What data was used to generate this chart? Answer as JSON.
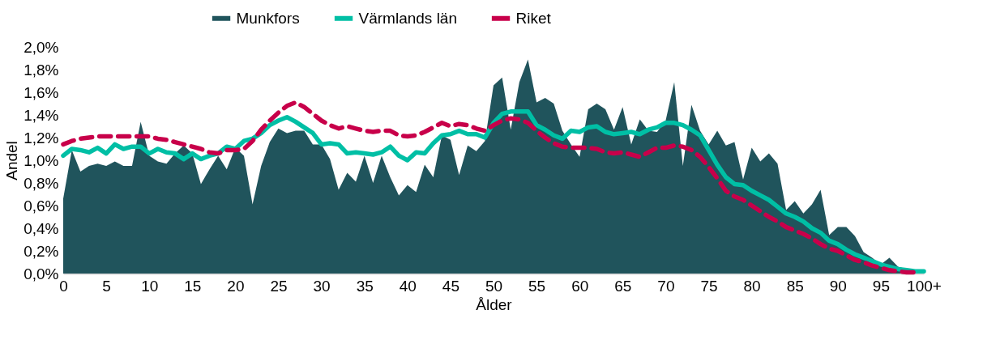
{
  "chart_data": {
    "type": "line",
    "xlabel": "Ålder",
    "ylabel": "Andel",
    "categories": [
      "0",
      null,
      null,
      null,
      null,
      "5",
      null,
      null,
      null,
      null,
      "10",
      null,
      null,
      null,
      null,
      "15",
      null,
      null,
      null,
      null,
      "20",
      null,
      null,
      null,
      null,
      "25",
      null,
      null,
      null,
      null,
      "30",
      null,
      null,
      null,
      null,
      "35",
      null,
      null,
      null,
      null,
      "40",
      null,
      null,
      null,
      null,
      "45",
      null,
      null,
      null,
      null,
      "50",
      null,
      null,
      null,
      null,
      "55",
      null,
      null,
      null,
      null,
      "60",
      null,
      null,
      null,
      null,
      "65",
      null,
      null,
      null,
      null,
      "70",
      null,
      null,
      null,
      null,
      "75",
      null,
      null,
      null,
      null,
      "80",
      null,
      null,
      null,
      null,
      "85",
      null,
      null,
      null,
      null,
      "90",
      null,
      null,
      null,
      null,
      "95",
      null,
      null,
      null,
      null,
      "100+"
    ],
    "series": [
      {
        "name": "Munkfors",
        "type": "area",
        "color": "#20545c",
        "values": [
          0.66,
          1.09,
          0.9,
          0.95,
          0.97,
          0.95,
          0.99,
          0.95,
          0.95,
          1.34,
          1.04,
          0.99,
          0.97,
          1.06,
          1.13,
          1.06,
          0.79,
          0.92,
          1.04,
          0.92,
          1.11,
          1.04,
          0.61,
          0.95,
          1.16,
          1.28,
          1.24,
          1.26,
          1.26,
          1.14,
          1.14,
          1.01,
          0.74,
          0.89,
          0.81,
          1.04,
          0.8,
          1.04,
          0.85,
          0.69,
          0.78,
          0.72,
          0.96,
          0.85,
          1.22,
          1.18,
          0.87,
          1.13,
          1.08,
          1.17,
          1.66,
          1.73,
          1.27,
          1.69,
          1.89,
          1.51,
          1.55,
          1.5,
          1.26,
          1.14,
          1.03,
          1.45,
          1.5,
          1.45,
          1.27,
          1.47,
          1.14,
          1.36,
          1.26,
          1.25,
          1.35,
          1.69,
          0.95,
          1.49,
          1.26,
          1.14,
          1.26,
          1.13,
          1.16,
          0.83,
          1.11,
          0.99,
          1.06,
          0.97,
          0.56,
          0.64,
          0.53,
          0.61,
          0.74,
          0.34,
          0.41,
          0.41,
          0.33,
          0.19,
          0.14,
          0.08,
          0.14,
          0.06,
          0.04,
          0.01,
          0.0
        ]
      },
      {
        "name": "Värmlands län",
        "line_style": "solid",
        "color": "#00bfa5",
        "values": [
          1.04,
          1.1,
          1.09,
          1.07,
          1.11,
          1.06,
          1.14,
          1.1,
          1.12,
          1.12,
          1.06,
          1.1,
          1.07,
          1.06,
          1.01,
          1.06,
          1.01,
          1.04,
          1.06,
          1.12,
          1.1,
          1.17,
          1.19,
          1.24,
          1.31,
          1.35,
          1.38,
          1.34,
          1.29,
          1.24,
          1.14,
          1.15,
          1.14,
          1.06,
          1.07,
          1.06,
          1.05,
          1.07,
          1.12,
          1.04,
          1.0,
          1.07,
          1.06,
          1.15,
          1.22,
          1.23,
          1.26,
          1.23,
          1.23,
          1.2,
          1.33,
          1.41,
          1.43,
          1.43,
          1.43,
          1.31,
          1.27,
          1.22,
          1.19,
          1.26,
          1.25,
          1.29,
          1.3,
          1.25,
          1.23,
          1.24,
          1.25,
          1.23,
          1.27,
          1.29,
          1.33,
          1.33,
          1.31,
          1.27,
          1.22,
          1.09,
          0.96,
          0.85,
          0.79,
          0.78,
          0.73,
          0.69,
          0.65,
          0.59,
          0.53,
          0.5,
          0.46,
          0.4,
          0.36,
          0.29,
          0.26,
          0.21,
          0.17,
          0.14,
          0.11,
          0.08,
          0.06,
          0.04,
          0.03,
          0.02,
          0.02
        ]
      },
      {
        "name": "Riket",
        "line_style": "dashed",
        "color": "#c8004a",
        "values": [
          1.14,
          1.17,
          1.19,
          1.2,
          1.21,
          1.21,
          1.21,
          1.21,
          1.21,
          1.21,
          1.21,
          1.19,
          1.18,
          1.16,
          1.14,
          1.12,
          1.1,
          1.07,
          1.06,
          1.09,
          1.09,
          1.1,
          1.17,
          1.27,
          1.35,
          1.42,
          1.48,
          1.51,
          1.47,
          1.41,
          1.35,
          1.31,
          1.28,
          1.3,
          1.28,
          1.26,
          1.25,
          1.26,
          1.26,
          1.22,
          1.21,
          1.22,
          1.25,
          1.29,
          1.33,
          1.3,
          1.32,
          1.31,
          1.28,
          1.26,
          1.31,
          1.35,
          1.37,
          1.36,
          1.33,
          1.26,
          1.2,
          1.15,
          1.12,
          1.11,
          1.11,
          1.11,
          1.1,
          1.07,
          1.06,
          1.07,
          1.05,
          1.03,
          1.07,
          1.11,
          1.11,
          1.13,
          1.12,
          1.09,
          1.03,
          0.94,
          0.84,
          0.73,
          0.68,
          0.65,
          0.6,
          0.55,
          0.5,
          0.46,
          0.41,
          0.38,
          0.35,
          0.31,
          0.26,
          0.22,
          0.2,
          0.16,
          0.12,
          0.1,
          0.07,
          0.05,
          0.03,
          0.02,
          0.01,
          0.01,
          null
        ]
      }
    ],
    "ylim": [
      0,
      2.0
    ],
    "yticks": [
      {
        "value": 0,
        "label": "0,0%"
      },
      {
        "value": 0.2,
        "label": "0,2%"
      },
      {
        "value": 0.4,
        "label": "0,4%"
      },
      {
        "value": 0.6,
        "label": "0,6%"
      },
      {
        "value": 0.8,
        "label": "0,8%"
      },
      {
        "value": 1.0,
        "label": "1,0%"
      },
      {
        "value": 1.2,
        "label": "1,2%"
      },
      {
        "value": 1.4,
        "label": "1,4%"
      },
      {
        "value": 1.6,
        "label": "1,6%"
      },
      {
        "value": 1.8,
        "label": "1,8%"
      },
      {
        "value": 2.0,
        "label": "2,0%"
      }
    ],
    "grid": false,
    "legend": "top"
  }
}
